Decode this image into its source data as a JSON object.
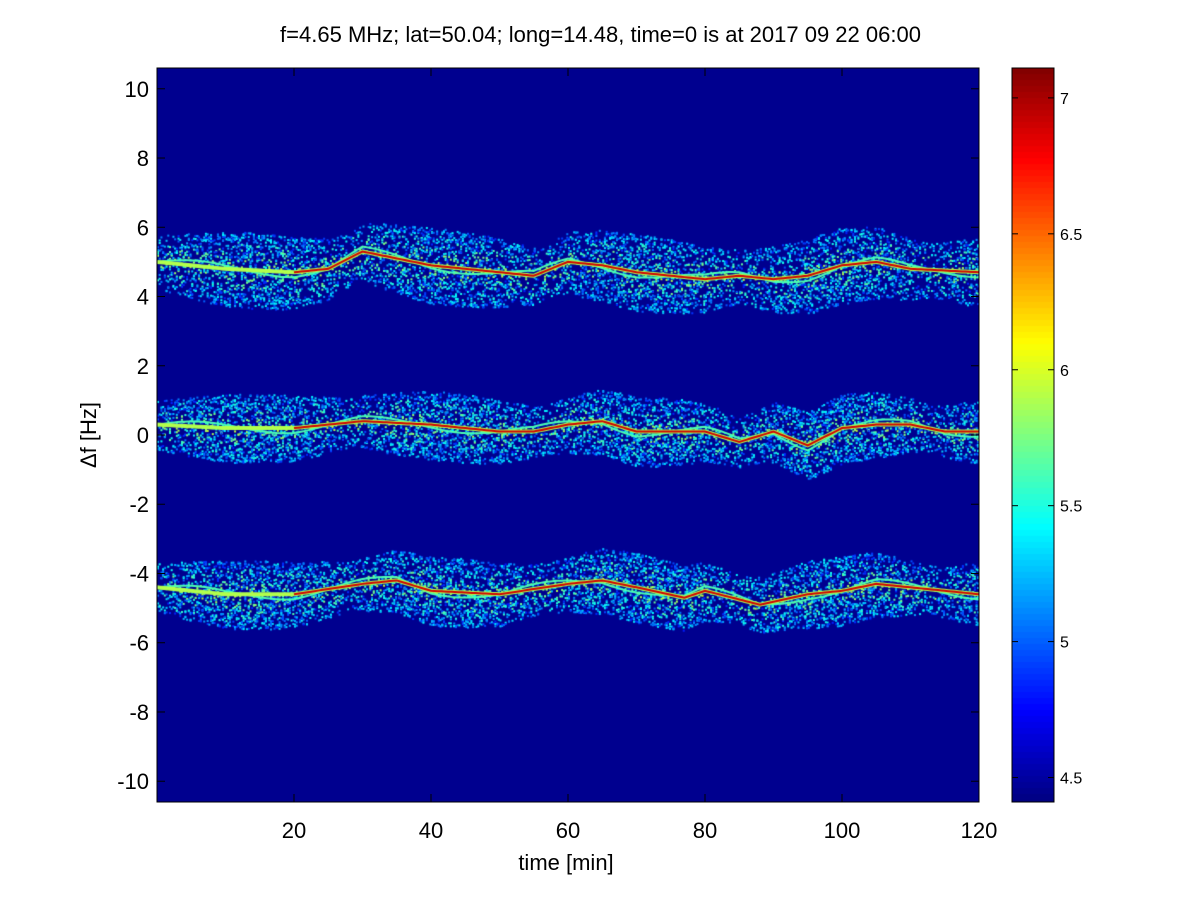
{
  "chart_data": {
    "type": "heatmap",
    "title": "f=4.65 MHz;  lat=50.04; long=14.48, time=0 is at 2017 09 22 06:00",
    "xlabel": "time [min]",
    "ylabel": "Δf [Hz]",
    "xlim": [
      0,
      120
    ],
    "ylim": [
      -10.6,
      10.6
    ],
    "xticks": [
      20,
      40,
      60,
      80,
      100,
      120
    ],
    "xtick_labels": [
      "20",
      "40",
      "60",
      "80",
      "100",
      "120"
    ],
    "yticks": [
      10,
      8,
      6,
      4,
      2,
      0,
      -2,
      -4,
      -6,
      -8,
      -10
    ],
    "ytick_labels": [
      "10",
      "8",
      "6",
      "4",
      "2",
      "0",
      "-2",
      "-4",
      "-6",
      "-8",
      "-10"
    ],
    "colormap": "jet",
    "background_color": "#00008f",
    "colorbar": {
      "clim": [
        4.41,
        7.11
      ],
      "ticks": [
        7,
        6.5,
        6,
        5.5,
        5,
        4.5
      ],
      "tick_labels": [
        "7",
        "6.5",
        "6",
        "5.5",
        "5",
        "4.5"
      ]
    },
    "bands": [
      {
        "name": "upper",
        "spread": 0.55,
        "centerline": [
          [
            0,
            5.0
          ],
          [
            10,
            4.8
          ],
          [
            20,
            4.7
          ],
          [
            25,
            4.8
          ],
          [
            30,
            5.3
          ],
          [
            40,
            4.9
          ],
          [
            50,
            4.7
          ],
          [
            55,
            4.6
          ],
          [
            60,
            5.0
          ],
          [
            65,
            4.9
          ],
          [
            70,
            4.7
          ],
          [
            80,
            4.5
          ],
          [
            85,
            4.6
          ],
          [
            90,
            4.5
          ],
          [
            95,
            4.6
          ],
          [
            100,
            4.9
          ],
          [
            105,
            5.0
          ],
          [
            110,
            4.8
          ],
          [
            120,
            4.7
          ]
        ]
      },
      {
        "name": "middle",
        "spread": 0.5,
        "centerline": [
          [
            0,
            0.3
          ],
          [
            10,
            0.2
          ],
          [
            20,
            0.2
          ],
          [
            30,
            0.4
          ],
          [
            40,
            0.3
          ],
          [
            50,
            0.1
          ],
          [
            55,
            0.1
          ],
          [
            60,
            0.3
          ],
          [
            65,
            0.4
          ],
          [
            70,
            0.1
          ],
          [
            80,
            0.1
          ],
          [
            85,
            -0.2
          ],
          [
            90,
            0.1
          ],
          [
            95,
            -0.3
          ],
          [
            100,
            0.2
          ],
          [
            105,
            0.3
          ],
          [
            110,
            0.3
          ],
          [
            115,
            0.1
          ],
          [
            120,
            0.1
          ]
        ]
      },
      {
        "name": "lower",
        "spread": 0.5,
        "centerline": [
          [
            0,
            -4.4
          ],
          [
            10,
            -4.6
          ],
          [
            20,
            -4.6
          ],
          [
            30,
            -4.3
          ],
          [
            35,
            -4.2
          ],
          [
            40,
            -4.5
          ],
          [
            50,
            -4.6
          ],
          [
            60,
            -4.3
          ],
          [
            65,
            -4.2
          ],
          [
            70,
            -4.4
          ],
          [
            77,
            -4.7
          ],
          [
            80,
            -4.5
          ],
          [
            88,
            -4.9
          ],
          [
            95,
            -4.6
          ],
          [
            100,
            -4.5
          ],
          [
            105,
            -4.3
          ],
          [
            110,
            -4.4
          ],
          [
            115,
            -4.5
          ],
          [
            120,
            -4.6
          ]
        ]
      }
    ]
  }
}
